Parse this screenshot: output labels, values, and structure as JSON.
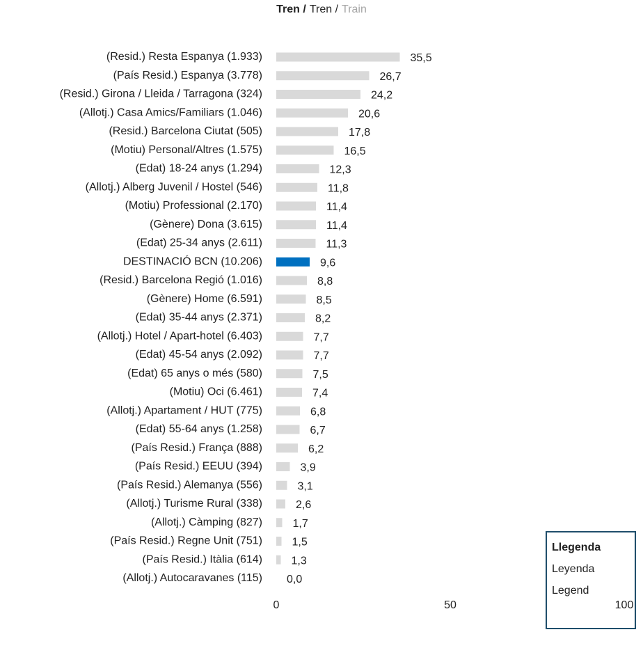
{
  "chart_data": {
    "type": "hbar",
    "title": {
      "ca": "Tren /",
      "es": "Tren /",
      "en": "Train"
    },
    "legend_box": {
      "ca": "Llegenda",
      "es": "Leyenda",
      "en": "Legend"
    },
    "categories": [
      "(Resid.) Resta Espanya (1.933)",
      "(País Resid.) Espanya (3.778)",
      "(Resid.) Girona / Lleida / Tarragona (324)",
      "(Allotj.) Casa Amics/Familiars (1.046)",
      "(Resid.) Barcelona Ciutat (505)",
      "(Motiu) Personal/Altres (1.575)",
      "(Edat) 18-24 anys (1.294)",
      "(Allotj.) Alberg Juvenil / Hostel  (546)",
      "(Motiu) Professional (2.170)",
      "(Gènere) Dona (3.615)",
      "(Edat) 25-34 anys  (2.611)",
      "DESTINACIÓ BCN (10.206)",
      "(Resid.) Barcelona Regió (1.016)",
      "(Gènere) Home (6.591)",
      "(Edat) 35-44 anys (2.371)",
      "(Allotj.) Hotel / Apart-hotel (6.403)",
      "(Edat) 45-54 anys (2.092)",
      "(Edat) 65 anys o més (580)",
      "(Motiu) Oci (6.461)",
      "(Allotj.) Apartament / HUT (775)",
      "(Edat) 55-64 anys (1.258)",
      "(País Resid.) França (888)",
      "(País Resid.) EEUU (394)",
      "(País Resid.) Alemanya (556)",
      "(Allotj.) Turisme Rural (338)",
      "(Allotj.) Càmping (827)",
      "(País Resid.) Regne Unit (751)",
      "(País Resid.) Itàlia (614)",
      "(Allotj.) Autocaravanes (115)"
    ],
    "values": [
      35.5,
      26.7,
      24.2,
      20.6,
      17.8,
      16.5,
      12.3,
      11.8,
      11.4,
      11.4,
      11.3,
      9.6,
      8.8,
      8.5,
      8.2,
      7.7,
      7.7,
      7.5,
      7.4,
      6.8,
      6.7,
      6.2,
      3.9,
      3.1,
      2.6,
      1.7,
      1.5,
      1.3,
      0
    ],
    "value_labels": [
      "35,5",
      "26,7",
      "24,2",
      "20,6",
      "17,8",
      "16,5",
      "12,3",
      "11,8",
      "11,4",
      "11,4",
      "11,3",
      "9,6",
      "8,8",
      "8,5",
      "8,2",
      "7,7",
      "7,7",
      "7,5",
      "7,4",
      "6,8",
      "6,7",
      "6,2",
      "3,9",
      "3,1",
      "2,6",
      "1,7",
      "1,5",
      "1,3",
      "0,0"
    ],
    "color": "#d9d9d9",
    "colors": [
      "#d9d9d9",
      "#d9d9d9",
      "#d9d9d9",
      "#d9d9d9",
      "#d9d9d9",
      "#d9d9d9",
      "#d9d9d9",
      "#d9d9d9",
      "#d9d9d9",
      "#d9d9d9",
      "#d9d9d9",
      "#0070c0",
      "#d9d9d9",
      "#d9d9d9",
      "#d9d9d9",
      "#d9d9d9",
      "#d9d9d9",
      "#d9d9d9",
      "#d9d9d9",
      "#d9d9d9",
      "#d9d9d9",
      "#d9d9d9",
      "#d9d9d9",
      "#d9d9d9",
      "#d9d9d9",
      "#d9d9d9",
      "#d9d9d9",
      "#d9d9d9",
      "#d9d9d9"
    ],
    "xlim": [
      0,
      100
    ],
    "xticks": [
      0,
      50,
      100
    ],
    "grid": false
  }
}
